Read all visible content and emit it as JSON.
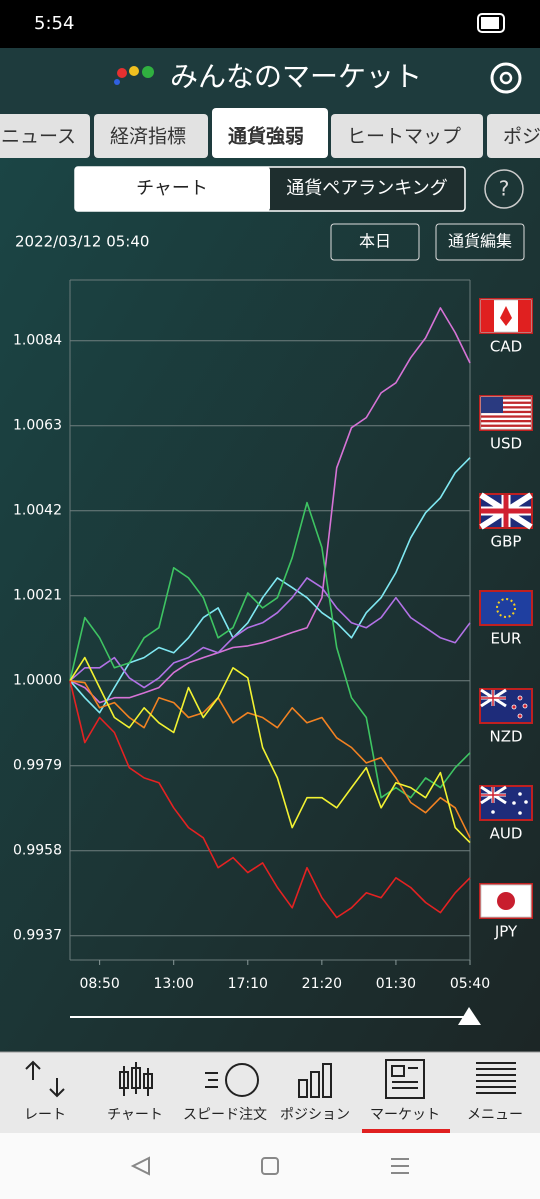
{
  "status_bar": {
    "time": "5:54"
  },
  "header": {
    "title": "みんなのマーケット"
  },
  "tabs": [
    "ニュース",
    "経済指標",
    "通貨強弱",
    "ヒートマップ",
    "ポジ"
  ],
  "segments": [
    "チャート",
    "通貨ペアランキング"
  ],
  "help": "?",
  "timestamp": "2022/03/12 05:40",
  "buttons": [
    "本日",
    "通貨編集"
  ],
  "chart_data": {
    "type": "line",
    "x": [
      0,
      50,
      100,
      150,
      200,
      250,
      300,
      350,
      400,
      450,
      500,
      550,
      600,
      650,
      700,
      750,
      800,
      850,
      900,
      950,
      1000,
      1050,
      1100,
      1150,
      1200,
      1250,
      1300,
      1350
    ],
    "xlim": [
      0,
      1350
    ],
    "xticks": [
      {
        "value": 100,
        "label": "08:50"
      },
      {
        "value": 350,
        "label": "13:00"
      },
      {
        "value": 600,
        "label": "17:10"
      },
      {
        "value": 850,
        "label": "21:20"
      },
      {
        "value": 1100,
        "label": "01:30"
      },
      {
        "value": 1350,
        "label": "05:40"
      }
    ],
    "ylim": [
      0.9931,
      1.0099
    ],
    "yticks": [
      0.9937,
      0.9958,
      0.9979,
      {
        "value": 1,
        "label": "1.0000"
      },
      1.0021,
      1.0042,
      1.0063,
      1.0084
    ],
    "grid": true,
    "series": [
      {
        "name": "CAD",
        "color": "#d673d6",
        "values": [
          1.0,
          0.99983,
          0.99946,
          0.99958,
          0.99958,
          0.9997,
          0.99983,
          1.0002,
          1.00044,
          1.00057,
          1.00069,
          1.00082,
          1.00086,
          1.00094,
          1.00106,
          1.00119,
          1.00131,
          1.00205,
          1.00526,
          1.00625,
          1.0065,
          1.00711,
          1.00736,
          1.00798,
          1.00847,
          1.00921,
          1.0086,
          1.00785
        ]
      },
      {
        "name": "USD",
        "color": "#80e8f2",
        "values": [
          1.0,
          0.99958,
          0.99921,
          0.99983,
          1.00044,
          1.00057,
          1.00082,
          1.00069,
          1.00106,
          1.00156,
          1.0018,
          1.00106,
          1.00143,
          1.00205,
          1.00254,
          1.0023,
          1.00205,
          1.00168,
          1.00143,
          1.00106,
          1.00168,
          1.00205,
          1.00267,
          1.00353,
          1.00415,
          1.00452,
          1.00514,
          1.00551
        ]
      },
      {
        "name": "GBP",
        "color": "#b272e6",
        "values": [
          1.0,
          1.00032,
          1.00032,
          1.00057,
          1.00007,
          0.99983,
          1.00007,
          1.00044,
          1.00057,
          1.00082,
          1.00069,
          1.00106,
          1.00131,
          1.00143,
          1.00168,
          1.00205,
          1.00254,
          1.0023,
          1.0018,
          1.00143,
          1.00131,
          1.00156,
          1.00205,
          1.00156,
          1.00131,
          1.00106,
          1.00094,
          1.00143
        ]
      },
      {
        "name": "EUR",
        "color": "#3ec462",
        "values": [
          1.0,
          1.00156,
          1.00106,
          1.00032,
          1.00044,
          1.00106,
          1.00131,
          1.00279,
          1.00254,
          1.00205,
          1.00106,
          1.00131,
          1.00217,
          1.0018,
          1.00205,
          1.00304,
          1.0044,
          1.00329,
          1.00082,
          0.99958,
          0.99909,
          0.99711,
          0.99736,
          0.99711,
          0.9976,
          0.99736,
          0.99785,
          0.99822
        ]
      },
      {
        "name": "NZD",
        "color": "#f28222",
        "values": [
          1.0,
          0.99995,
          0.99933,
          0.99946,
          0.99909,
          0.99884,
          0.99958,
          0.99946,
          0.99909,
          0.99921,
          0.99958,
          0.99896,
          0.99921,
          0.99909,
          0.99884,
          0.99933,
          0.99896,
          0.99909,
          0.99859,
          0.99835,
          0.99797,
          0.9981,
          0.9976,
          0.99699,
          0.99674,
          0.99711,
          0.99686,
          0.99612
        ]
      },
      {
        "name": "AUD",
        "color": "#f2f232",
        "values": [
          1.0,
          1.00057,
          0.99983,
          0.99909,
          0.99884,
          0.99933,
          0.99896,
          0.99872,
          0.99983,
          0.99909,
          0.99958,
          1.00032,
          1.00007,
          0.99835,
          0.9976,
          0.99637,
          0.99711,
          0.99711,
          0.99686,
          0.99736,
          0.99785,
          0.99686,
          0.99748,
          0.99736,
          0.99711,
          0.99773,
          0.99637,
          0.996
        ]
      },
      {
        "name": "JPY",
        "color": "#e42222",
        "values": [
          1.0,
          0.99847,
          0.99909,
          0.99872,
          0.99785,
          0.9976,
          0.99748,
          0.99686,
          0.99637,
          0.99612,
          0.99538,
          0.99563,
          0.99526,
          0.9955,
          0.99489,
          0.99439,
          0.99538,
          0.99464,
          0.99415,
          0.99439,
          0.99476,
          0.99464,
          0.99513,
          0.99489,
          0.99452,
          0.99427,
          0.99476,
          0.99513
        ]
      }
    ]
  },
  "nav": [
    "レート",
    "チャート",
    "スピード注文",
    "ポジション",
    "マーケット",
    "メニュー"
  ]
}
